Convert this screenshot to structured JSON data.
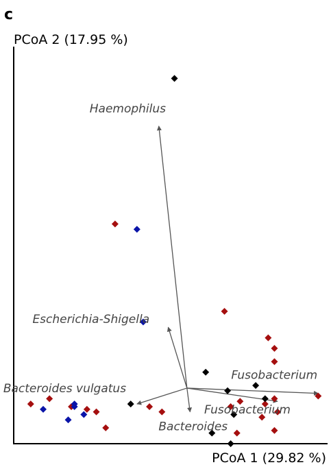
{
  "panel_label": "c",
  "colors": {
    "red": "#a50f0f",
    "blue": "#0a14a8",
    "black": "#000000",
    "arrow": "#555555",
    "label": "#444444"
  },
  "chart_data": {
    "type": "scatter",
    "xlabel": "PCoA 1 (29.82 %)",
    "ylabel": "PCoA 2 (17.95 %)",
    "xlim": [
      -0.55,
      0.45
    ],
    "ylim": [
      -0.3,
      1.2
    ],
    "grid": false,
    "legend": "none",
    "series": [
      {
        "color": "red",
        "points": [
          [
            -0.5,
            -0.15
          ],
          [
            -0.44,
            -0.13
          ],
          [
            -0.37,
            -0.16
          ],
          [
            -0.32,
            -0.17
          ],
          [
            -0.29,
            -0.18
          ],
          [
            -0.26,
            -0.24
          ],
          [
            -0.23,
            0.53
          ],
          [
            -0.12,
            -0.16
          ],
          [
            -0.08,
            -0.18
          ],
          [
            0.12,
            0.2
          ],
          [
            0.14,
            -0.16
          ],
          [
            0.17,
            -0.14
          ],
          [
            0.16,
            -0.26
          ],
          [
            0.24,
            -0.2
          ],
          [
            0.25,
            -0.15
          ],
          [
            0.26,
            0.1
          ],
          [
            0.28,
            0.06
          ],
          [
            0.28,
            0.01
          ],
          [
            0.28,
            -0.25
          ],
          [
            0.28,
            -0.13
          ],
          [
            0.29,
            -0.18
          ],
          [
            0.42,
            -0.12
          ]
        ]
      },
      {
        "color": "blue",
        "points": [
          [
            -0.46,
            -0.17
          ],
          [
            -0.38,
            -0.21
          ],
          [
            -0.36,
            -0.15
          ],
          [
            -0.36,
            -0.16
          ],
          [
            -0.33,
            -0.19
          ],
          [
            -0.16,
            0.51
          ],
          [
            -0.14,
            0.16
          ]
        ]
      },
      {
        "color": "black",
        "points": [
          [
            -0.04,
            1.08
          ],
          [
            -0.18,
            -0.15
          ],
          [
            0.06,
            -0.03
          ],
          [
            0.08,
            -0.26
          ],
          [
            0.13,
            -0.1
          ],
          [
            0.15,
            -0.19
          ],
          [
            0.14,
            -0.3
          ],
          [
            0.22,
            -0.08
          ],
          [
            0.25,
            -0.13
          ]
        ]
      }
    ],
    "biplot_vectors": [
      {
        "taxon": "Haemophilus",
        "to": [
          -0.09,
          0.9
        ]
      },
      {
        "taxon": "Escherichia-Shigella",
        "to": [
          -0.06,
          0.14
        ]
      },
      {
        "taxon": "Bacteroides vulgatus",
        "to": [
          -0.16,
          -0.15
        ]
      },
      {
        "taxon": "Fusobacterium",
        "to": [
          0.42,
          -0.11
        ]
      },
      {
        "taxon": "Fusobacterium",
        "to": [
          0.29,
          -0.14
        ]
      },
      {
        "taxon": "Bacteroides",
        "to": [
          0.01,
          -0.18
        ]
      }
    ],
    "vector_origin": [
      0.0,
      -0.09
    ]
  }
}
